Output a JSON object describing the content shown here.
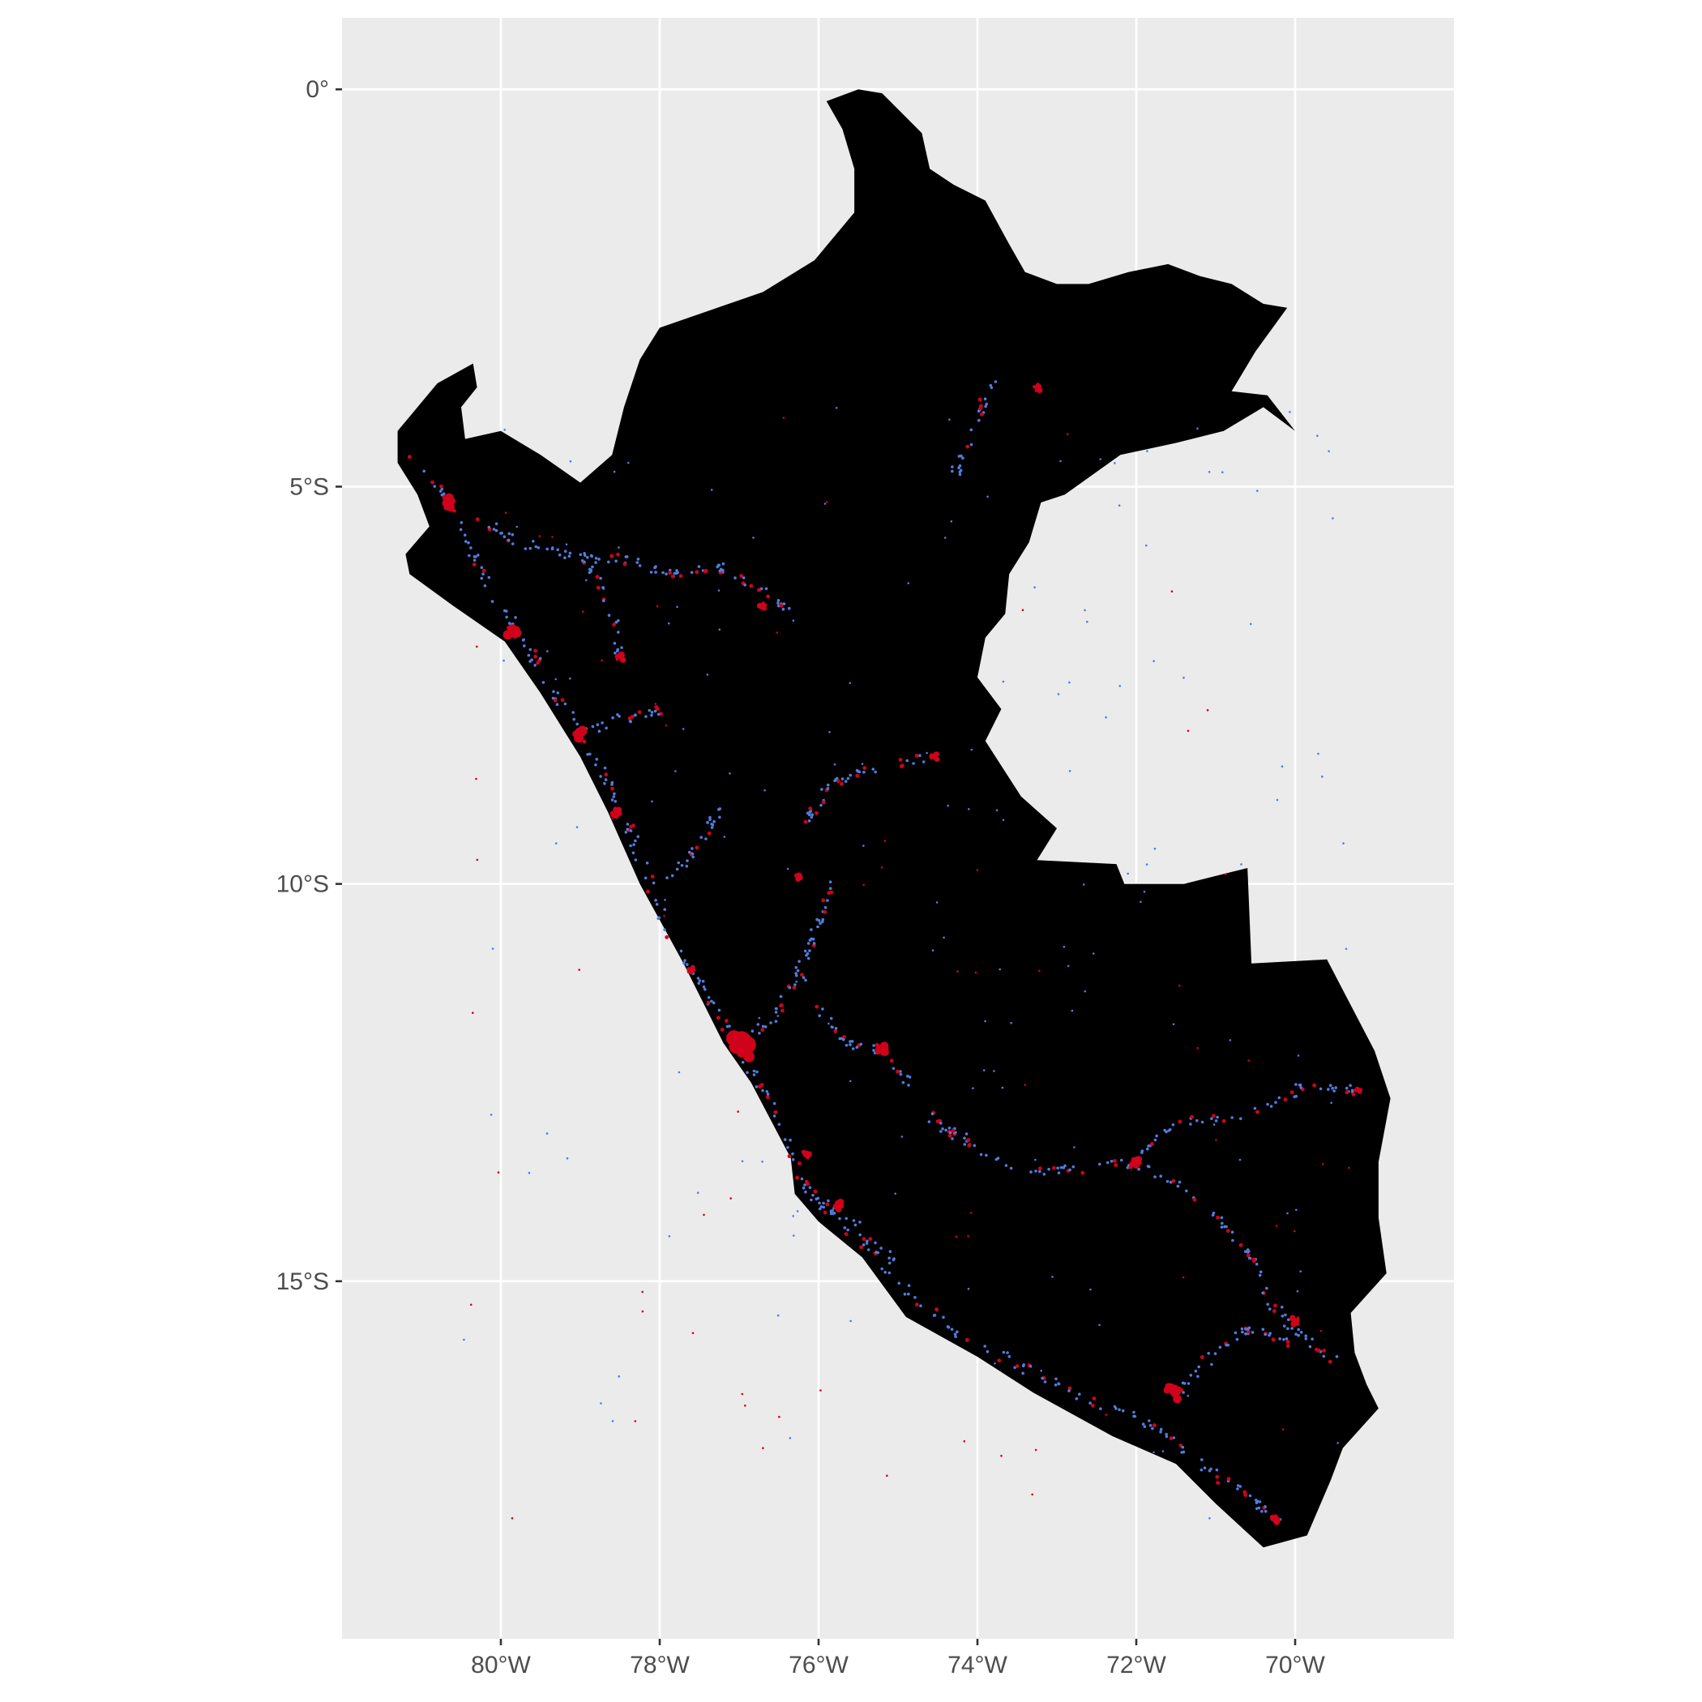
{
  "map": {
    "x_axis": {
      "range": [
        -82.0,
        -68.0
      ],
      "ticks": [
        {
          "value": -80,
          "label": "80°W"
        },
        {
          "value": -78,
          "label": "78°W"
        },
        {
          "value": -76,
          "label": "76°W"
        },
        {
          "value": -74,
          "label": "74°W"
        },
        {
          "value": -72,
          "label": "72°W"
        },
        {
          "value": -70,
          "label": "70°W"
        }
      ]
    },
    "y_axis": {
      "range": [
        -19.5,
        0.9
      ],
      "ticks": [
        {
          "value": 0,
          "label": "0°"
        },
        {
          "value": -5,
          "label": "5°S"
        },
        {
          "value": -10,
          "label": "10°S"
        },
        {
          "value": -15,
          "label": "15°S"
        }
      ]
    },
    "grid": true,
    "colors": {
      "panel_background": "#ebebeb",
      "grid": "#ffffff",
      "country_fill": "#000000",
      "lights_low": "#4f7ddc",
      "lights_high": "#d0021b"
    }
  }
}
